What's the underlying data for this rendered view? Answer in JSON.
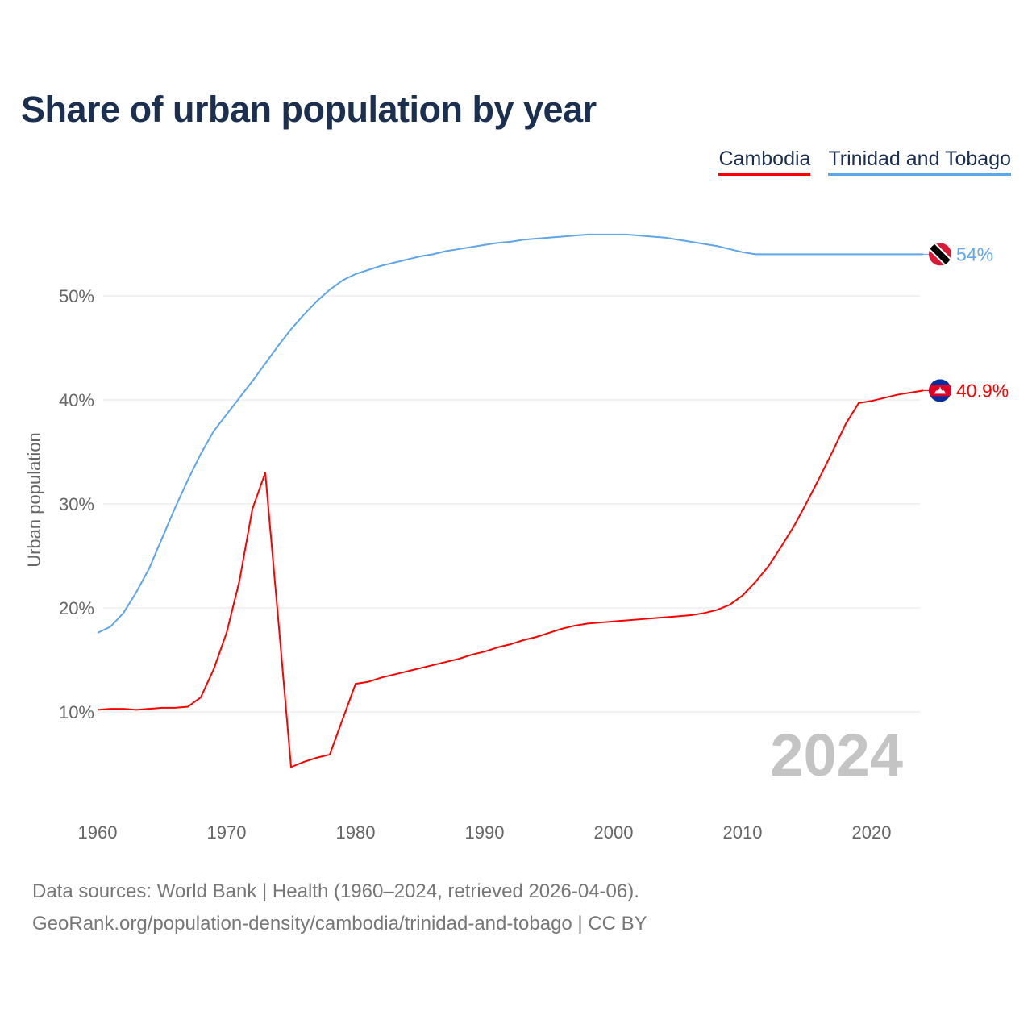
{
  "title": "Share of urban population by year",
  "footer": {
    "line1": "Data sources: World Bank | Health (1960–2024, retrieved 2026-04-06).",
    "line2": "GeoRank.org/population-density/cambodia/trinidad-and-tobago | CC BY"
  },
  "chart_data": {
    "type": "line",
    "title": "Share of urban population by year",
    "xlabel": "",
    "ylabel": "Urban population",
    "year_watermark": "2024",
    "xlim": [
      1960,
      2024
    ],
    "ylim": [
      0,
      60
    ],
    "x_ticks": [
      "1960",
      "1970",
      "1980",
      "1990",
      "2000",
      "2010",
      "2020"
    ],
    "y_ticks": [
      {
        "v": 10,
        "label": "10%"
      },
      {
        "v": 20,
        "label": "20%"
      },
      {
        "v": 30,
        "label": "30%"
      },
      {
        "v": 40,
        "label": "40%"
      },
      {
        "v": 50,
        "label": "50%"
      }
    ],
    "grid": true,
    "legend_position": "top-right",
    "x": [
      1960,
      1961,
      1962,
      1963,
      1964,
      1965,
      1966,
      1967,
      1968,
      1969,
      1970,
      1971,
      1972,
      1973,
      1974,
      1975,
      1976,
      1977,
      1978,
      1979,
      1980,
      1981,
      1982,
      1983,
      1984,
      1985,
      1986,
      1987,
      1988,
      1989,
      1990,
      1991,
      1992,
      1993,
      1994,
      1995,
      1996,
      1997,
      1998,
      1999,
      2000,
      2001,
      2002,
      2003,
      2004,
      2005,
      2006,
      2007,
      2008,
      2009,
      2010,
      2011,
      2012,
      2013,
      2014,
      2015,
      2016,
      2017,
      2018,
      2019,
      2020,
      2021,
      2022,
      2023,
      2024
    ],
    "series": [
      {
        "name": "Cambodia",
        "color": "#ff0000",
        "end_label": "40.9%",
        "flag": "cambodia-flag",
        "values": [
          10.2,
          10.3,
          10.3,
          10.2,
          10.3,
          10.4,
          10.4,
          10.5,
          11.4,
          14.1,
          17.6,
          22.6,
          29.5,
          33.0,
          19.0,
          4.7,
          5.2,
          5.6,
          5.9,
          9.3,
          12.7,
          12.9,
          13.3,
          13.6,
          13.9,
          14.2,
          14.5,
          14.8,
          15.1,
          15.5,
          15.8,
          16.2,
          16.5,
          16.9,
          17.2,
          17.6,
          18.0,
          18.3,
          18.5,
          18.6,
          18.7,
          18.8,
          18.9,
          19.0,
          19.1,
          19.2,
          19.3,
          19.5,
          19.8,
          20.3,
          21.2,
          22.5,
          24.0,
          25.9,
          27.9,
          30.2,
          32.6,
          35.1,
          37.7,
          39.7,
          39.9,
          40.2,
          40.5,
          40.7,
          40.9
        ]
      },
      {
        "name": "Trinidad and Tobago",
        "color": "#5fa5ea",
        "end_label": "54%",
        "flag": "trinidad-and-tobago-flag",
        "values": [
          17.6,
          18.2,
          19.5,
          21.5,
          23.8,
          26.7,
          29.6,
          32.3,
          34.8,
          37.0,
          38.6,
          40.2,
          41.8,
          43.5,
          45.2,
          46.8,
          48.2,
          49.5,
          50.6,
          51.5,
          52.1,
          52.5,
          52.9,
          53.2,
          53.5,
          53.8,
          54.0,
          54.3,
          54.5,
          54.7,
          54.9,
          55.1,
          55.2,
          55.4,
          55.5,
          55.6,
          55.7,
          55.8,
          55.9,
          55.9,
          55.9,
          55.9,
          55.8,
          55.7,
          55.6,
          55.4,
          55.2,
          55.0,
          54.8,
          54.5,
          54.2,
          54.0,
          54.0,
          54.0,
          54.0,
          54.0,
          54.0,
          54.0,
          54.0,
          54.0,
          54.0,
          54.0,
          54.0,
          54.0,
          54.0
        ]
      }
    ]
  }
}
